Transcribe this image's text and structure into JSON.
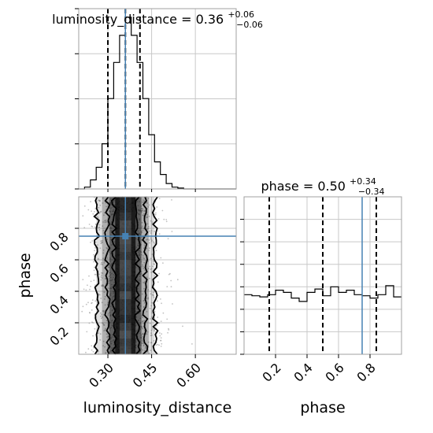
{
  "chart_data": {
    "type": "corner",
    "params": [
      {
        "name": "luminosity_distance",
        "label": "luminosity_distance",
        "median": "0.36",
        "err_plus": "+0.06",
        "err_minus": "−0.06",
        "quantiles": [
          0.3,
          0.36,
          0.41
        ],
        "truth": 0.36,
        "range": [
          0.2,
          0.74
        ],
        "ticks": [
          0.3,
          0.45,
          0.6
        ],
        "tick_labels": [
          "0.30",
          "0.45",
          "0.60"
        ],
        "hist_bins": [
          0.2,
          0.22,
          0.24,
          0.26,
          0.28,
          0.3,
          0.32,
          0.34,
          0.36,
          0.38,
          0.4,
          0.42,
          0.44,
          0.46,
          0.48,
          0.5,
          0.52,
          0.54,
          0.56,
          0.58,
          0.6,
          0.62,
          0.64,
          0.66,
          0.68,
          0.7,
          0.72,
          0.74
        ],
        "hist_values": [
          0,
          1,
          5,
          12,
          25,
          50,
          70,
          85,
          95,
          85,
          70,
          50,
          30,
          15,
          8,
          3,
          1,
          0.5,
          0,
          0,
          0,
          0,
          0,
          0,
          0,
          0,
          0
        ]
      },
      {
        "name": "phase",
        "label": "phase",
        "median": "0.50",
        "err_plus": "+0.34",
        "err_minus": "−0.34",
        "quantiles": [
          0.16,
          0.5,
          0.84
        ],
        "truth": 0.75,
        "range": [
          0.0,
          1.0
        ],
        "ticks": [
          0.2,
          0.4,
          0.6,
          0.8
        ],
        "tick_labels": [
          "0.2",
          "0.4",
          "0.6",
          "0.8"
        ],
        "hist_bins": [
          0.0,
          0.05,
          0.1,
          0.15,
          0.2,
          0.25,
          0.3,
          0.35,
          0.4,
          0.45,
          0.5,
          0.55,
          0.6,
          0.65,
          0.7,
          0.75,
          0.8,
          0.85,
          0.9,
          0.95,
          1.0
        ],
        "hist_values": [
          53,
          52,
          51,
          53,
          57,
          55,
          50,
          47,
          55,
          58,
          52,
          60,
          55,
          57,
          53,
          52,
          50,
          53,
          61,
          51
        ]
      }
    ],
    "joint": {
      "x_param": "luminosity_distance",
      "y_param": "phase",
      "truth": [
        0.36,
        0.75
      ],
      "x_ticks": [
        0.3,
        0.45,
        0.6
      ],
      "x_tick_labels": [
        "0.30",
        "0.45",
        "0.60"
      ],
      "y_ticks": [
        0.2,
        0.4,
        0.6,
        0.8
      ],
      "y_tick_labels": [
        "0.2",
        "0.4",
        "0.6",
        "0.8"
      ],
      "xlabel": "luminosity_distance",
      "ylabel": "phase"
    },
    "grid": true,
    "colors": {
      "truth": "#4682b4",
      "hist": "#000000",
      "grid": "#c8c8c8",
      "density": "#000000"
    }
  }
}
